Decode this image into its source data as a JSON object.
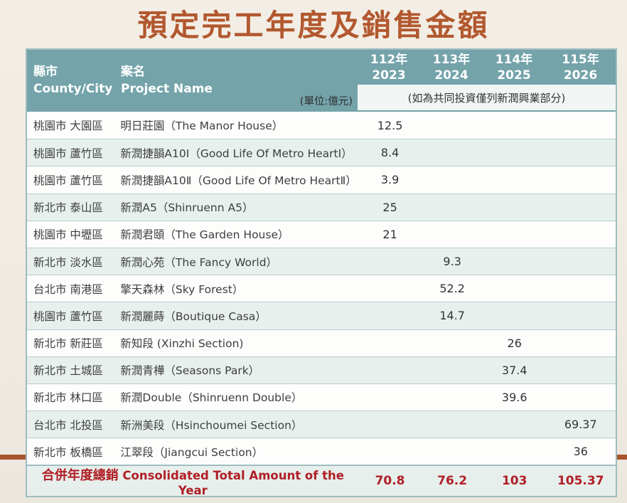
{
  "page": {
    "title": "預定完工年度及銷售金額",
    "title_color": "#b2582f",
    "background_color": "#f1ece3",
    "accent_line_color": "#a7542e"
  },
  "table": {
    "header": {
      "bg_color": "#74a3aa",
      "county": "縣市\nCounty/City",
      "project": "案名\nProject Name",
      "unit_note": "(單位:億元)",
      "co_invest_note": "(如為共同投資僅列新潤興業部分)",
      "years": [
        {
          "roc": "112年",
          "ad": "2023"
        },
        {
          "roc": "113年",
          "ad": "2024"
        },
        {
          "roc": "114年",
          "ad": "2025"
        },
        {
          "roc": "115年",
          "ad": "2026"
        }
      ]
    },
    "rows": [
      {
        "county": "桃園市 大園區",
        "project": "明日莊園（The Manor House）",
        "values": [
          "12.5",
          "",
          "",
          ""
        ]
      },
      {
        "county": "桃園市 蘆竹區",
        "project": "新潤捷韻A10Ⅰ（Good Life Of Metro HeartⅠ）",
        "values": [
          "8.4",
          "",
          "",
          ""
        ]
      },
      {
        "county": "桃園市 蘆竹區",
        "project": "新潤捷韻A10Ⅱ（Good Life Of Metro HeartⅡ）",
        "values": [
          "3.9",
          "",
          "",
          ""
        ]
      },
      {
        "county": "新北市 泰山區",
        "project": "新潤A5（Shinruenn A5）",
        "values": [
          "25",
          "",
          "",
          ""
        ]
      },
      {
        "county": "桃園市 中壢區",
        "project": "新潤君頤（The Garden House）",
        "values": [
          "21",
          "",
          "",
          ""
        ]
      },
      {
        "county": "新北市 淡水區",
        "project": "新潤心苑（The Fancy World）",
        "values": [
          "",
          "9.3",
          "",
          ""
        ]
      },
      {
        "county": "台北市 南港區",
        "project": "擎天森林（Sky Forest）",
        "values": [
          "",
          "52.2",
          "",
          ""
        ]
      },
      {
        "county": "桃園市 蘆竹區",
        "project": "新潤麗蒔（Boutique Casa）",
        "values": [
          "",
          "14.7",
          "",
          ""
        ]
      },
      {
        "county": "新北市 新莊區",
        "project": "新知段 (Xinzhi Section)",
        "values": [
          "",
          "",
          "26",
          ""
        ]
      },
      {
        "county": "新北市 土城區",
        "project": "新潤青樺（Seasons Park）",
        "values": [
          "",
          "",
          "37.4",
          ""
        ]
      },
      {
        "county": "新北市 林口區",
        "project": "新潤Double（Shinruenn Double）",
        "values": [
          "",
          "",
          "39.6",
          ""
        ]
      },
      {
        "county": "台北市 北投區",
        "project": "新洲美段（Hsinchoumei Section）",
        "values": [
          "",
          "",
          "",
          "69.37"
        ]
      },
      {
        "county": "新北市 板橋區",
        "project": "江翠段（Jiangcui Section）",
        "values": [
          "",
          "",
          "",
          "36"
        ]
      }
    ],
    "total": {
      "label_zh": "合併年度總銷",
      "label_en": "Consolidated Total Amount of the Year",
      "values": [
        "70.8",
        "76.2",
        "103",
        "105.37"
      ],
      "text_color": "#b01f26"
    }
  }
}
